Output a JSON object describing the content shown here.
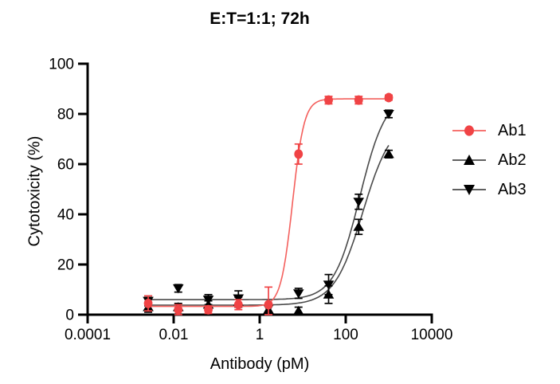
{
  "figure": {
    "background": "#ffffff",
    "text_color": "#000000"
  },
  "chart_data": {
    "type": "scatter",
    "subtype": "dose-response-sigmoid-fit",
    "title": "E:T=1:1; 72h",
    "xlabel": "Antibody (pM)",
    "ylabel": "Cytotoxicity (%)",
    "x_scale": "log10",
    "xlim": [
      0.0001,
      10000
    ],
    "ylim": [
      0,
      100
    ],
    "x_tick_values": [
      0.0001,
      0.01,
      1,
      100,
      10000
    ],
    "x_tick_labels": [
      "0.0001",
      "0.01",
      "1",
      "100",
      "10000"
    ],
    "y_tick_values": [
      0,
      20,
      40,
      60,
      80,
      100
    ],
    "grid": false,
    "legend_position": "right",
    "x": [
      0.00256,
      0.0128,
      0.064,
      0.32,
      1.6,
      8,
      40,
      200,
      1000
    ],
    "series": [
      {
        "name": "Ab1",
        "marker": "circle",
        "color": "#F04345",
        "line_color": "#F4605D",
        "values": [
          4.5,
          2,
          2,
          4,
          4,
          64,
          85.5,
          85.5,
          86.5
        ],
        "errors": [
          3,
          2,
          1.5,
          2,
          7,
          4,
          1.5,
          1.5,
          1
        ],
        "fit": {
          "bottom": 3.3,
          "top": 86,
          "ec50": 5.8,
          "hill": 3.2
        }
      },
      {
        "name": "Ab2",
        "marker": "triangle-up",
        "color": "#000000",
        "line_color": "#4A4A4A",
        "values": [
          3,
          3,
          4,
          5,
          2,
          1.5,
          8,
          35,
          64
        ],
        "errors": [
          2,
          1.5,
          1.5,
          2,
          1.5,
          1.5,
          3.5,
          3,
          1.5
        ],
        "fit": {
          "bottom": 3.8,
          "top": 78,
          "ec50": 250,
          "hill": 1.3
        }
      },
      {
        "name": "Ab3",
        "marker": "triangle-down",
        "color": "#000000",
        "line_color": "#4A4A4A",
        "values": [
          5.5,
          10.5,
          6,
          6.5,
          2.5,
          8.5,
          12,
          45,
          80
        ],
        "errors": [
          2,
          1.5,
          2,
          3,
          1.5,
          2,
          4,
          3,
          1.5
        ],
        "fit": {
          "bottom": 6.0,
          "top": 88,
          "ec50": 213,
          "hill": 1.44
        }
      }
    ]
  }
}
